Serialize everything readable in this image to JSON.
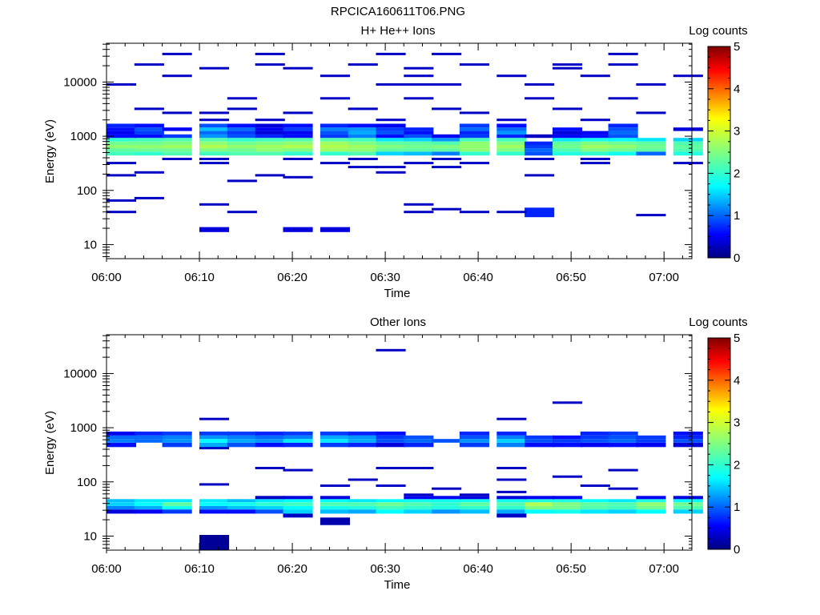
{
  "figure_title": "RPCICA160611T06.PNG",
  "colors": {
    "colormap": [
      "#00007f",
      "#0000ff",
      "#0080ff",
      "#00ffff",
      "#80ff80",
      "#ffff00",
      "#ff8000",
      "#ff0000",
      "#7f0000"
    ]
  },
  "chart_data": [
    {
      "type": "heatmap",
      "title": "H+ He++ Ions",
      "xlabel": "Time",
      "ylabel": "Energy (eV)",
      "xlim": [
        "06:00",
        "07:03"
      ],
      "ylim": [
        5.5,
        52000
      ],
      "y_scale": "log",
      "x_tick_labels": [
        "06:00",
        "06:10",
        "06:20",
        "06:30",
        "06:40",
        "06:50",
        "07:00"
      ],
      "y_tick_labels": [
        "10",
        "100",
        "1000",
        "10000"
      ],
      "colorbar": {
        "label": "Log counts",
        "range": [
          0,
          5
        ],
        "tick_labels": [
          "0",
          "1",
          "2",
          "3",
          "4",
          "5"
        ]
      },
      "time_bins": [
        "06:00",
        "06:03",
        "06:06",
        "06:10",
        "06:13",
        "06:16",
        "06:19",
        "06:23",
        "06:26",
        "06:29",
        "06:32",
        "06:35",
        "06:38",
        "06:42",
        "06:45",
        "06:48",
        "06:51",
        "06:54",
        "06:57",
        "07:01"
      ],
      "bin_width_min": 3.2,
      "lines": [
        {
          "e": 9000,
          "t": [
            0,
            9,
            10,
            11,
            14,
            18
          ]
        },
        {
          "e": 21000,
          "t": [
            1,
            5,
            8,
            12,
            15,
            17
          ]
        },
        {
          "e": 13000,
          "t": [
            2,
            7,
            10,
            13,
            16,
            19
          ]
        },
        {
          "e": 33000,
          "t": [
            2,
            5,
            9,
            11,
            17
          ]
        },
        {
          "e": 3200,
          "t": [
            1,
            4,
            8,
            11,
            15
          ]
        },
        {
          "e": 2700,
          "t": [
            2,
            3,
            6,
            12,
            18
          ]
        },
        {
          "e": 2000,
          "t": [
            3,
            5,
            9,
            13,
            16
          ]
        },
        {
          "e": 5000,
          "t": [
            4,
            7,
            10,
            14,
            17
          ]
        },
        {
          "e": 18000,
          "t": [
            3,
            6,
            10,
            15
          ]
        },
        {
          "e": 380,
          "t": [
            2,
            3,
            6,
            8,
            11,
            14,
            16
          ]
        },
        {
          "e": 320,
          "t": [
            0,
            3,
            7,
            10,
            12,
            16,
            19
          ]
        },
        {
          "e": 270,
          "t": [
            8,
            9,
            11
          ]
        },
        {
          "e": 215,
          "t": [
            1,
            9
          ]
        },
        {
          "e": 190,
          "t": [
            0,
            5,
            14
          ]
        },
        {
          "e": 175,
          "t": [
            6
          ]
        },
        {
          "e": 150,
          "t": [
            4
          ]
        },
        {
          "e": 72,
          "t": [
            1
          ]
        },
        {
          "e": 65,
          "t": [
            0
          ]
        },
        {
          "e": 55,
          "t": [
            3,
            10
          ]
        },
        {
          "e": 45,
          "t": [
            11
          ]
        },
        {
          "e": 40,
          "t": [
            0,
            4,
            10,
            12,
            13
          ]
        },
        {
          "e": 35,
          "t": [
            18
          ]
        }
      ],
      "lines_level": 0.3,
      "blocks": [
        {
          "t": 3,
          "e_lo": 17,
          "e_hi": 21,
          "v": 0.4
        },
        {
          "t": 6,
          "e_lo": 17,
          "e_hi": 21,
          "v": 0.4
        },
        {
          "t": 7,
          "e_lo": 17,
          "e_hi": 21,
          "v": 0.4
        },
        {
          "t": 14,
          "e_lo": 32,
          "e_hi": 48,
          "v": 0.7
        }
      ],
      "band_rows": [
        {
          "lo": 440,
          "hi": 520,
          "v": [
            2.1,
            2.0,
            2.2,
            2.1,
            2.2,
            2.2,
            2.0,
            2.0,
            2.2,
            1.5,
            1.4,
            1.1,
            2.0,
            2.0,
            0.9,
            1.9,
            2.0,
            1.8,
            1.0,
            1.9
          ]
        },
        {
          "lo": 520,
          "hi": 600,
          "v": [
            2.3,
            2.4,
            2.4,
            2.5,
            2.4,
            2.6,
            2.5,
            2.7,
            2.6,
            2.3,
            2.3,
            2.3,
            2.6,
            2.5,
            1.0,
            2.2,
            2.5,
            2.4,
            2.3,
            2.2
          ]
        },
        {
          "lo": 600,
          "hi": 690,
          "v": [
            2.6,
            2.6,
            2.7,
            2.8,
            2.6,
            2.7,
            2.8,
            2.8,
            2.7,
            2.5,
            2.4,
            2.5,
            2.6,
            2.7,
            0.8,
            2.4,
            2.7,
            2.6,
            2.4,
            2.3
          ]
        },
        {
          "lo": 690,
          "hi": 800,
          "v": [
            2.4,
            2.4,
            2.5,
            2.6,
            2.4,
            2.5,
            2.6,
            2.7,
            2.5,
            2.3,
            2.3,
            2.2,
            2.6,
            2.5,
            0.7,
            2.3,
            2.5,
            2.4,
            2.3,
            2.2
          ]
        },
        {
          "lo": 800,
          "hi": 930,
          "v": [
            2.0,
            2.1,
            2.2,
            2.2,
            2.0,
            2.1,
            2.2,
            2.2,
            2.1,
            1.6,
            1.5,
            1.2,
            2.1,
            2.1,
            null,
            1.6,
            1.8,
            1.7,
            1.6,
            1.5
          ]
        },
        {
          "lo": 930,
          "hi": 1080,
          "v": [
            0.6,
            0.6,
            0.8,
            1.2,
            0.9,
            0.7,
            0.6,
            0.8,
            1.1,
            0.6,
            0.9,
            0.5,
            0.8,
            0.7,
            0.3,
            0.5,
            0.6,
            0.9,
            null,
            null
          ]
        },
        {
          "lo": 1080,
          "hi": 1250,
          "v": [
            0.5,
            0.8,
            null,
            1.0,
            0.8,
            0.4,
            0.5,
            0.9,
            1.3,
            0.9,
            0.6,
            null,
            0.7,
            1.2,
            null,
            0.4,
            0.5,
            1.0,
            null,
            null
          ]
        },
        {
          "lo": 1250,
          "hi": 1450,
          "v": [
            0.6,
            0.9,
            0.5,
            1.4,
            1.0,
            0.5,
            0.8,
            1.1,
            1.2,
            0.8,
            0.7,
            null,
            1.0,
            1.0,
            null,
            0.6,
            null,
            0.9,
            null,
            0.4
          ]
        },
        {
          "lo": 1450,
          "hi": 1700,
          "v": [
            0.7,
            0.6,
            null,
            0.9,
            0.6,
            0.4,
            0.6,
            0.7,
            0.6,
            0.5,
            null,
            null,
            0.8,
            0.6,
            null,
            null,
            null,
            0.7,
            null,
            null
          ]
        }
      ]
    },
    {
      "type": "heatmap",
      "title": "Other Ions",
      "xlabel": "Time",
      "ylabel": "Energy (eV)",
      "xlim": [
        "06:00",
        "07:03"
      ],
      "ylim": [
        5.5,
        52000
      ],
      "y_scale": "log",
      "x_tick_labels": [
        "06:00",
        "06:10",
        "06:20",
        "06:30",
        "06:40",
        "06:50",
        "07:00"
      ],
      "y_tick_labels": [
        "10",
        "100",
        "1000",
        "10000"
      ],
      "colorbar": {
        "label": "Log counts",
        "range": [
          0,
          5
        ],
        "tick_labels": [
          "0",
          "1",
          "2",
          "3",
          "4",
          "5"
        ]
      },
      "time_bins": [
        "06:00",
        "06:03",
        "06:06",
        "06:10",
        "06:13",
        "06:16",
        "06:19",
        "06:23",
        "06:26",
        "06:29",
        "06:32",
        "06:35",
        "06:38",
        "06:42",
        "06:45",
        "06:48",
        "06:51",
        "06:54",
        "06:57",
        "07:01"
      ],
      "bin_width_min": 3.2,
      "lines": [
        {
          "e": 27000,
          "t": [
            9
          ]
        },
        {
          "e": 2900,
          "t": [
            15
          ]
        },
        {
          "e": 1450,
          "t": [
            3,
            13
          ]
        },
        {
          "e": 420,
          "t": [
            3
          ]
        },
        {
          "e": 180,
          "t": [
            5,
            9,
            10,
            13
          ]
        },
        {
          "e": 165,
          "t": [
            6,
            17
          ]
        },
        {
          "e": 125,
          "t": [
            15
          ]
        },
        {
          "e": 110,
          "t": [
            8,
            13
          ]
        },
        {
          "e": 90,
          "t": [
            3
          ]
        },
        {
          "e": 85,
          "t": [
            7,
            9,
            16
          ]
        },
        {
          "e": 75,
          "t": [
            11,
            17
          ]
        },
        {
          "e": 65,
          "t": [
            13
          ]
        },
        {
          "e": 58,
          "t": [
            10,
            12
          ]
        }
      ],
      "lines_level": 0.3,
      "blocks": [
        {
          "t": 3,
          "e_lo": 5.5,
          "e_hi": 10.5,
          "v": 0.1
        },
        {
          "t": 7,
          "e_lo": 16,
          "e_hi": 22,
          "v": 0.2
        },
        {
          "t": 6,
          "e_lo": 22,
          "e_hi": 26,
          "v": 0.3
        },
        {
          "t": 13,
          "e_lo": 22,
          "e_hi": 26,
          "v": 0.3
        }
      ],
      "band_rows": [
        {
          "lo": 26,
          "hi": 31,
          "v": [
            0.4,
            0.5,
            0.8,
            0.6,
            0.6,
            0.9,
            1.5,
            1.4,
            1.3,
            1.7,
            1.5,
            1.2,
            1.4,
            1.3,
            1.7,
            1.8,
            1.6,
            1.5,
            1.7,
            1.5
          ]
        },
        {
          "lo": 31,
          "hi": 36,
          "v": [
            1.1,
            1.3,
            1.8,
            1.2,
            1.4,
            1.5,
            1.7,
            1.8,
            1.9,
            2.1,
            2.0,
            1.9,
            2.0,
            2.0,
            2.5,
            2.4,
            2.2,
            2.1,
            2.4,
            2.2
          ]
        },
        {
          "lo": 36,
          "hi": 42,
          "v": [
            1.5,
            1.7,
            2.3,
            1.7,
            1.8,
            2.0,
            2.1,
            2.2,
            2.2,
            2.4,
            2.2,
            2.0,
            2.3,
            2.2,
            2.8,
            2.5,
            2.3,
            2.2,
            2.6,
            2.4
          ]
        },
        {
          "lo": 42,
          "hi": 48,
          "v": [
            1.4,
            1.6,
            1.6,
            1.6,
            1.4,
            1.6,
            1.7,
            1.7,
            1.6,
            1.7,
            1.8,
            1.8,
            1.8,
            1.8,
            1.9,
            1.9,
            1.7,
            1.6,
            1.9,
            1.7
          ]
        },
        {
          "lo": 48,
          "hi": 55,
          "v": [
            null,
            null,
            null,
            null,
            null,
            0.3,
            0.4,
            0.4,
            null,
            null,
            0.5,
            0.5,
            0.4,
            0.4,
            0.5,
            0.5,
            null,
            null,
            0.5,
            0.4
          ]
        },
        {
          "lo": 440,
          "hi": 530,
          "v": [
            0.6,
            null,
            0.8,
            1.3,
            0.9,
            0.6,
            0.7,
            0.8,
            0.7,
            0.4,
            0.7,
            null,
            0.8,
            1.1,
            0.6,
            0.6,
            0.5,
            0.6,
            0.5,
            0.4
          ]
        },
        {
          "lo": 530,
          "hi": 620,
          "v": [
            1.1,
            1.0,
            1.2,
            1.7,
            1.3,
            1.2,
            1.6,
            1.6,
            1.3,
            0.9,
            1.0,
            0.9,
            1.2,
            1.5,
            0.9,
            0.8,
            0.9,
            1.0,
            0.8,
            0.9
          ]
        },
        {
          "lo": 620,
          "hi": 720,
          "v": [
            1.0,
            1.0,
            1.1,
            1.2,
            1.1,
            1.0,
            1.1,
            1.3,
            1.2,
            0.8,
            0.9,
            null,
            0.9,
            1.1,
            0.8,
            0.6,
            0.8,
            0.9,
            0.8,
            0.7
          ]
        },
        {
          "lo": 720,
          "hi": 850,
          "v": [
            0.5,
            0.7,
            0.8,
            0.8,
            0.8,
            0.7,
            0.8,
            0.8,
            0.7,
            0.6,
            null,
            null,
            0.7,
            0.7,
            null,
            null,
            0.7,
            0.8,
            null,
            0.6
          ]
        }
      ]
    }
  ]
}
